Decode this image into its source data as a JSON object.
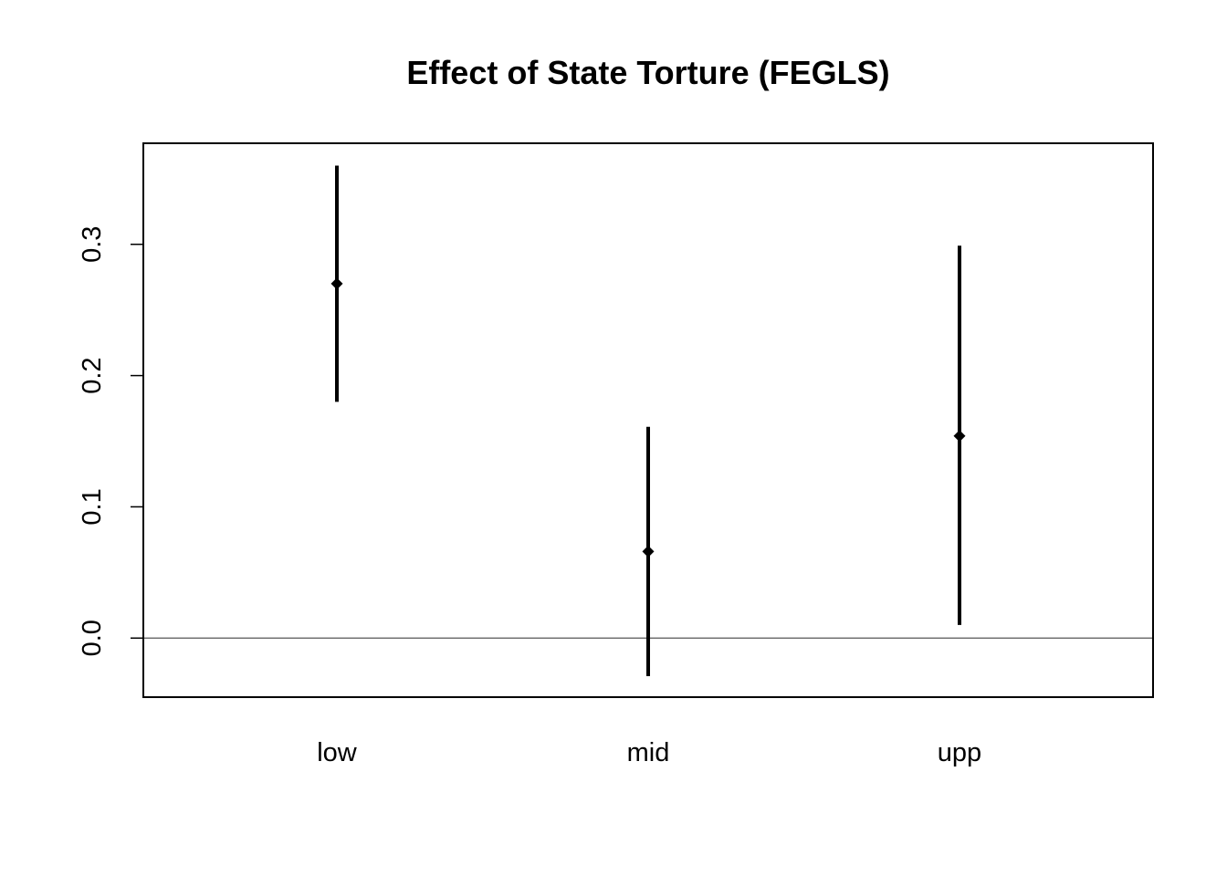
{
  "chart_data": {
    "type": "errorbar",
    "title": "Effect of State Torture (FEGLS)",
    "xlabel": "",
    "ylabel": "",
    "categories": [
      "low",
      "mid",
      "upp"
    ],
    "estimates": [
      0.27,
      0.066,
      0.154
    ],
    "lower": [
      0.18,
      -0.029,
      0.01
    ],
    "upper": [
      0.36,
      0.161,
      0.299
    ],
    "ylim": [
      -0.045,
      0.377
    ],
    "yticks": [
      "0.0",
      "0.1",
      "0.2",
      "0.3"
    ],
    "reference_line": 0.0,
    "grid": false,
    "legend": "none",
    "colors": {
      "marks": "#000000",
      "reference_line": "#555555",
      "frame": "#000000"
    }
  }
}
